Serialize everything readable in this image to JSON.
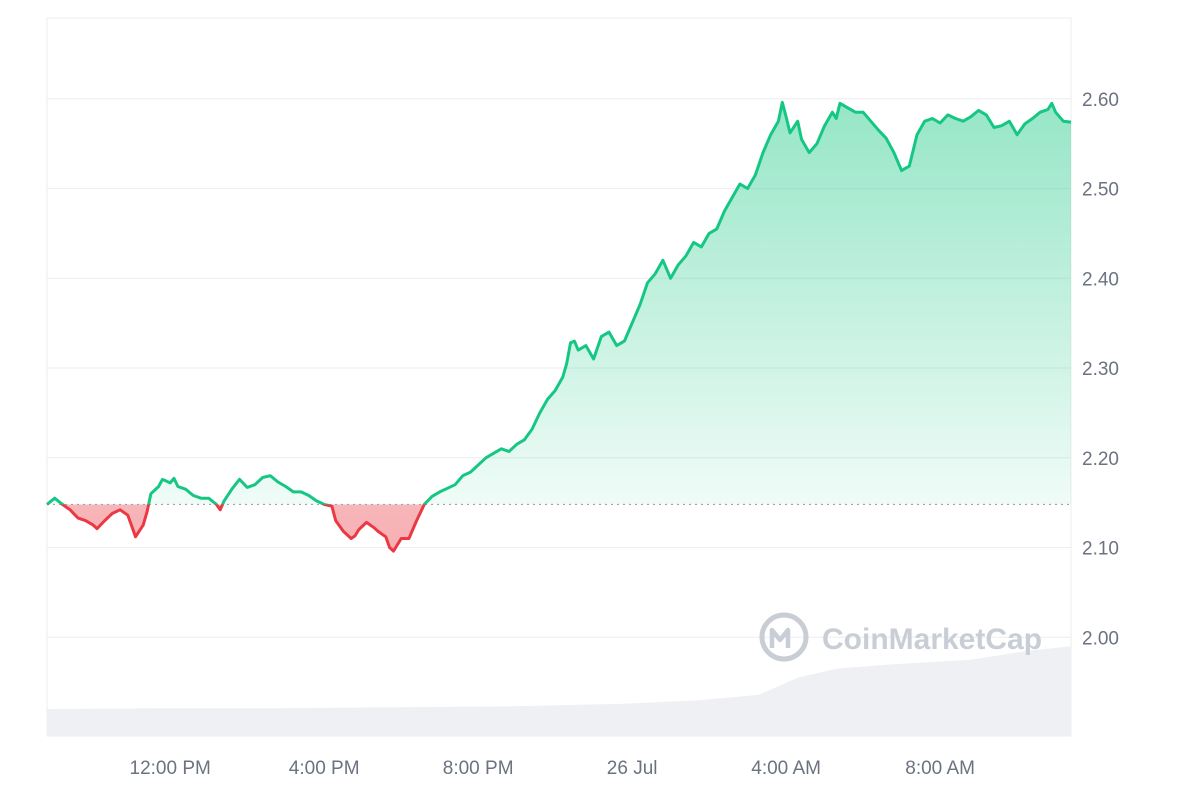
{
  "chart_data": {
    "type": "area",
    "baseline": 2.148,
    "ylim": [
      1.89,
      2.69
    ],
    "y_ticks": [
      "2.00",
      "2.10",
      "2.20",
      "2.30",
      "2.40",
      "2.50",
      "2.60"
    ],
    "y_tick_values": [
      2.0,
      2.1,
      2.2,
      2.3,
      2.4,
      2.5,
      2.6
    ],
    "x_ticks": [
      {
        "label": "12:00 PM",
        "hour": 3.2
      },
      {
        "label": "4:00 PM",
        "hour": 7.2
      },
      {
        "label": "8:00 PM",
        "hour": 11.2
      },
      {
        "label": "26 Jul",
        "hour": 15.2
      },
      {
        "label": "4:00 AM",
        "hour": 19.2
      },
      {
        "label": "8:00 AM",
        "hour": 23.2
      }
    ],
    "series": [
      {
        "points": [
          [
            0.0,
            2.148
          ],
          [
            0.2,
            2.155
          ],
          [
            0.4,
            2.148
          ],
          [
            0.6,
            2.142
          ],
          [
            0.8,
            2.133
          ],
          [
            1.0,
            2.13
          ],
          [
            1.2,
            2.125
          ],
          [
            1.3,
            2.121
          ],
          [
            1.5,
            2.13
          ],
          [
            1.7,
            2.138
          ],
          [
            1.9,
            2.142
          ],
          [
            2.1,
            2.136
          ],
          [
            2.2,
            2.124
          ],
          [
            2.3,
            2.112
          ],
          [
            2.5,
            2.125
          ],
          [
            2.6,
            2.14
          ],
          [
            2.7,
            2.16
          ],
          [
            2.9,
            2.168
          ],
          [
            3.0,
            2.176
          ],
          [
            3.2,
            2.172
          ],
          [
            3.3,
            2.177
          ],
          [
            3.4,
            2.168
          ],
          [
            3.6,
            2.165
          ],
          [
            3.8,
            2.158
          ],
          [
            4.0,
            2.155
          ],
          [
            4.2,
            2.155
          ],
          [
            4.4,
            2.148
          ],
          [
            4.5,
            2.142
          ],
          [
            4.6,
            2.152
          ],
          [
            4.8,
            2.165
          ],
          [
            5.0,
            2.176
          ],
          [
            5.2,
            2.167
          ],
          [
            5.4,
            2.17
          ],
          [
            5.6,
            2.178
          ],
          [
            5.8,
            2.18
          ],
          [
            6.0,
            2.173
          ],
          [
            6.2,
            2.168
          ],
          [
            6.4,
            2.162
          ],
          [
            6.6,
            2.162
          ],
          [
            6.8,
            2.158
          ],
          [
            7.0,
            2.152
          ],
          [
            7.2,
            2.148
          ],
          [
            7.4,
            2.146
          ],
          [
            7.5,
            2.13
          ],
          [
            7.7,
            2.118
          ],
          [
            7.9,
            2.11
          ],
          [
            8.0,
            2.113
          ],
          [
            8.1,
            2.12
          ],
          [
            8.3,
            2.128
          ],
          [
            8.5,
            2.122
          ],
          [
            8.6,
            2.118
          ],
          [
            8.8,
            2.112
          ],
          [
            8.9,
            2.1
          ],
          [
            9.0,
            2.096
          ],
          [
            9.2,
            2.11
          ],
          [
            9.4,
            2.11
          ],
          [
            9.6,
            2.13
          ],
          [
            9.8,
            2.148
          ],
          [
            10.0,
            2.157
          ],
          [
            10.2,
            2.162
          ],
          [
            10.4,
            2.166
          ],
          [
            10.6,
            2.17
          ],
          [
            10.8,
            2.18
          ],
          [
            11.0,
            2.184
          ],
          [
            11.2,
            2.192
          ],
          [
            11.4,
            2.2
          ],
          [
            11.6,
            2.205
          ],
          [
            11.8,
            2.21
          ],
          [
            12.0,
            2.207
          ],
          [
            12.2,
            2.215
          ],
          [
            12.4,
            2.22
          ],
          [
            12.6,
            2.232
          ],
          [
            12.8,
            2.25
          ],
          [
            13.0,
            2.265
          ],
          [
            13.2,
            2.275
          ],
          [
            13.4,
            2.29
          ],
          [
            13.5,
            2.305
          ],
          [
            13.6,
            2.328
          ],
          [
            13.7,
            2.33
          ],
          [
            13.8,
            2.32
          ],
          [
            14.0,
            2.325
          ],
          [
            14.2,
            2.31
          ],
          [
            14.4,
            2.335
          ],
          [
            14.6,
            2.34
          ],
          [
            14.8,
            2.325
          ],
          [
            15.0,
            2.33
          ],
          [
            15.2,
            2.35
          ],
          [
            15.4,
            2.37
          ],
          [
            15.6,
            2.395
          ],
          [
            15.8,
            2.405
          ],
          [
            16.0,
            2.42
          ],
          [
            16.2,
            2.4
          ],
          [
            16.4,
            2.415
          ],
          [
            16.6,
            2.425
          ],
          [
            16.8,
            2.44
          ],
          [
            17.0,
            2.435
          ],
          [
            17.2,
            2.45
          ],
          [
            17.4,
            2.455
          ],
          [
            17.6,
            2.475
          ],
          [
            17.8,
            2.49
          ],
          [
            18.0,
            2.505
          ],
          [
            18.2,
            2.5
          ],
          [
            18.4,
            2.515
          ],
          [
            18.6,
            2.54
          ],
          [
            18.8,
            2.56
          ],
          [
            19.0,
            2.575
          ],
          [
            19.1,
            2.596
          ],
          [
            19.2,
            2.58
          ],
          [
            19.3,
            2.562
          ],
          [
            19.5,
            2.575
          ],
          [
            19.6,
            2.555
          ],
          [
            19.8,
            2.54
          ],
          [
            20.0,
            2.55
          ],
          [
            20.2,
            2.57
          ],
          [
            20.4,
            2.585
          ],
          [
            20.5,
            2.578
          ],
          [
            20.6,
            2.595
          ],
          [
            20.8,
            2.59
          ],
          [
            21.0,
            2.585
          ],
          [
            21.2,
            2.585
          ],
          [
            21.4,
            2.575
          ],
          [
            21.6,
            2.565
          ],
          [
            21.8,
            2.556
          ],
          [
            22.0,
            2.54
          ],
          [
            22.2,
            2.52
          ],
          [
            22.4,
            2.525
          ],
          [
            22.6,
            2.56
          ],
          [
            22.8,
            2.575
          ],
          [
            23.0,
            2.578
          ],
          [
            23.2,
            2.573
          ],
          [
            23.4,
            2.582
          ],
          [
            23.6,
            2.578
          ],
          [
            23.8,
            2.575
          ],
          [
            24.0,
            2.58
          ],
          [
            24.2,
            2.587
          ],
          [
            24.4,
            2.582
          ],
          [
            24.6,
            2.568
          ],
          [
            24.8,
            2.57
          ],
          [
            25.0,
            2.575
          ],
          [
            25.2,
            2.56
          ],
          [
            25.4,
            2.572
          ],
          [
            25.6,
            2.578
          ],
          [
            25.8,
            2.585
          ],
          [
            26.0,
            2.588
          ],
          [
            26.1,
            2.595
          ],
          [
            26.2,
            2.585
          ],
          [
            26.4,
            2.575
          ],
          [
            26.6,
            2.574
          ]
        ]
      }
    ],
    "volume": [
      [
        0.0,
        1.92
      ],
      [
        3.0,
        1.921
      ],
      [
        6.0,
        1.921
      ],
      [
        9.0,
        1.922
      ],
      [
        12.0,
        1.923
      ],
      [
        15.0,
        1.926
      ],
      [
        17.0,
        1.93
      ],
      [
        18.5,
        1.936
      ],
      [
        19.5,
        1.955
      ],
      [
        20.5,
        1.965
      ],
      [
        22.0,
        1.97
      ],
      [
        24.0,
        1.975
      ],
      [
        25.5,
        1.985
      ],
      [
        26.6,
        1.99
      ]
    ],
    "colors": {
      "up": "#16c784",
      "down": "#ea3943",
      "volume": "#eef0f4",
      "grid": "#eceef2",
      "baseline": "#9ca3af"
    },
    "watermark": "CoinMarketCap",
    "grid": true
  }
}
